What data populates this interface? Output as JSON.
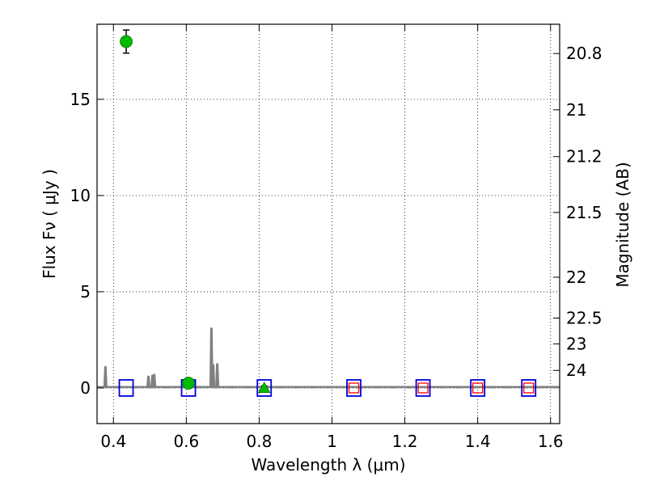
{
  "chart_data": {
    "type": "scatter",
    "xlabel": "Wavelength  λ (μm)",
    "ylabel": "Flux  Fν  ( μJy )",
    "ylabel_right": "Magnitude (AB)",
    "xlim": [
      0.355,
      1.625
    ],
    "ylim": [
      -1.85,
      18.9
    ],
    "grid": true,
    "x_ticks": [
      {
        "value": 0.4,
        "label": "0.4"
      },
      {
        "value": 0.6,
        "label": "0.6"
      },
      {
        "value": 0.8,
        "label": "0.8"
      },
      {
        "value": 1.0,
        "label": "1"
      },
      {
        "value": 1.2,
        "label": "1.2"
      },
      {
        "value": 1.4,
        "label": "1.4"
      },
      {
        "value": 1.6,
        "label": "1.6"
      }
    ],
    "y_ticks": [
      {
        "value": 0,
        "label": "0"
      },
      {
        "value": 5,
        "label": "5"
      },
      {
        "value": 10,
        "label": "10"
      },
      {
        "value": 15,
        "label": "15"
      }
    ],
    "right_ticks": [
      {
        "value": 20.8,
        "label": "20.8"
      },
      {
        "value": 21,
        "label": "21"
      },
      {
        "value": 21.2,
        "label": "21.2"
      },
      {
        "value": 21.5,
        "label": "21.5"
      },
      {
        "value": 22,
        "label": "22"
      },
      {
        "value": 22.5,
        "label": "22.5"
      },
      {
        "value": 23,
        "label": "23"
      },
      {
        "value": 24,
        "label": "24"
      }
    ],
    "photometry_points": [
      {
        "x": 0.435,
        "y": 18.0,
        "err": 0.6,
        "color": "#00bb00",
        "marker": "circle"
      },
      {
        "x": 0.606,
        "y": 0.25,
        "err": 0.1,
        "color": "#00bb00",
        "marker": "circle"
      },
      {
        "x": 0.814,
        "y": 0.0,
        "err": 0.1,
        "color": "#00bb00",
        "marker": "triangle"
      }
    ],
    "model_photometry": [
      {
        "x": 0.435,
        "y": 0.0,
        "color": "#0000dd"
      },
      {
        "x": 0.606,
        "y": 0.0,
        "color": "#0000dd"
      },
      {
        "x": 0.814,
        "y": 0.0,
        "color": "#0000dd"
      },
      {
        "x": 1.06,
        "y": 0.0,
        "color": "#0000dd"
      },
      {
        "x": 1.25,
        "y": 0.0,
        "color": "#0000dd"
      },
      {
        "x": 1.4,
        "y": 0.0,
        "color": "#0000dd"
      },
      {
        "x": 1.54,
        "y": 0.0,
        "color": "#0000dd"
      }
    ],
    "upper_limits": [
      {
        "x": 1.06,
        "y": 0.0,
        "color": "#ff0000"
      },
      {
        "x": 1.25,
        "y": 0.0,
        "color": "#ff0000"
      },
      {
        "x": 1.4,
        "y": 0.0,
        "color": "#ff0000"
      },
      {
        "x": 1.54,
        "y": 0.0,
        "color": "#ff0000"
      }
    ],
    "spectrum": {
      "color": "#808080",
      "baseline": 0.05,
      "lines": [
        {
          "x": 0.378,
          "peak": 1.1
        },
        {
          "x": 0.496,
          "peak": 0.6
        },
        {
          "x": 0.507,
          "peak": 0.65
        },
        {
          "x": 0.512,
          "peak": 0.7
        },
        {
          "x": 0.669,
          "peak": 3.1
        },
        {
          "x": 0.674,
          "peak": 1.2
        },
        {
          "x": 0.685,
          "peak": 1.25
        }
      ]
    },
    "colors": {
      "data_points": "#00bb00",
      "model_boxes": "#0000dd",
      "limit_boxes": "#ff0000",
      "spectrum": "#808080"
    }
  }
}
